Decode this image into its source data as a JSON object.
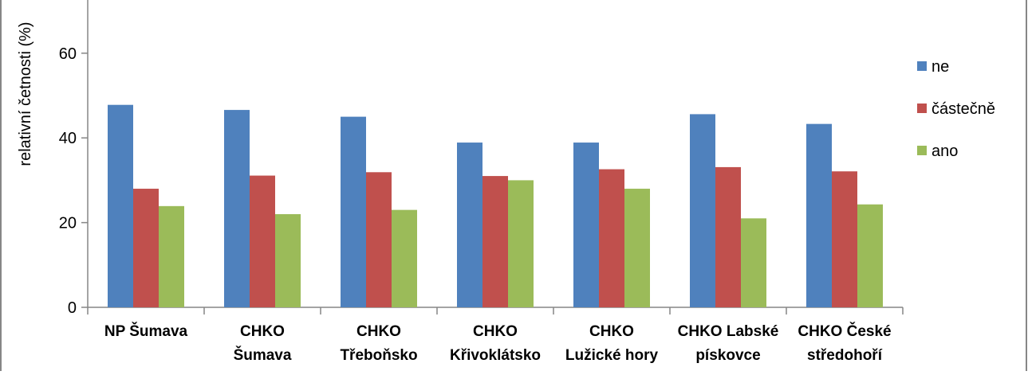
{
  "chart_data": {
    "type": "bar",
    "ylabel": "relativní četnosti (%)",
    "xlabel": "",
    "ylim": [
      0,
      60
    ],
    "yticks": [
      0,
      20,
      40,
      60
    ],
    "grid": false,
    "legend_position": "right",
    "categories": [
      [
        "NP Šumava"
      ],
      [
        "CHKO",
        "Šumava"
      ],
      [
        "CHKO",
        "Třeboňsko"
      ],
      [
        "CHKO",
        "Křivoklátsko"
      ],
      [
        "CHKO",
        "Lužické hory"
      ],
      [
        "CHKO Labské",
        "pískovce"
      ],
      [
        "CHKO České",
        "středohoří"
      ]
    ],
    "series": [
      {
        "name": "ne",
        "color": "#4f81bd",
        "values": [
          47.8,
          46.6,
          45.0,
          38.9,
          38.9,
          45.6,
          43.3
        ]
      },
      {
        "name": "částečně",
        "color": "#c0504d",
        "values": [
          28.0,
          31.1,
          31.9,
          31.0,
          32.6,
          33.1,
          32.1
        ]
      },
      {
        "name": "ano",
        "color": "#9bbb59",
        "values": [
          23.9,
          22.0,
          23.0,
          30.0,
          28.0,
          21.0,
          24.3
        ]
      }
    ]
  }
}
